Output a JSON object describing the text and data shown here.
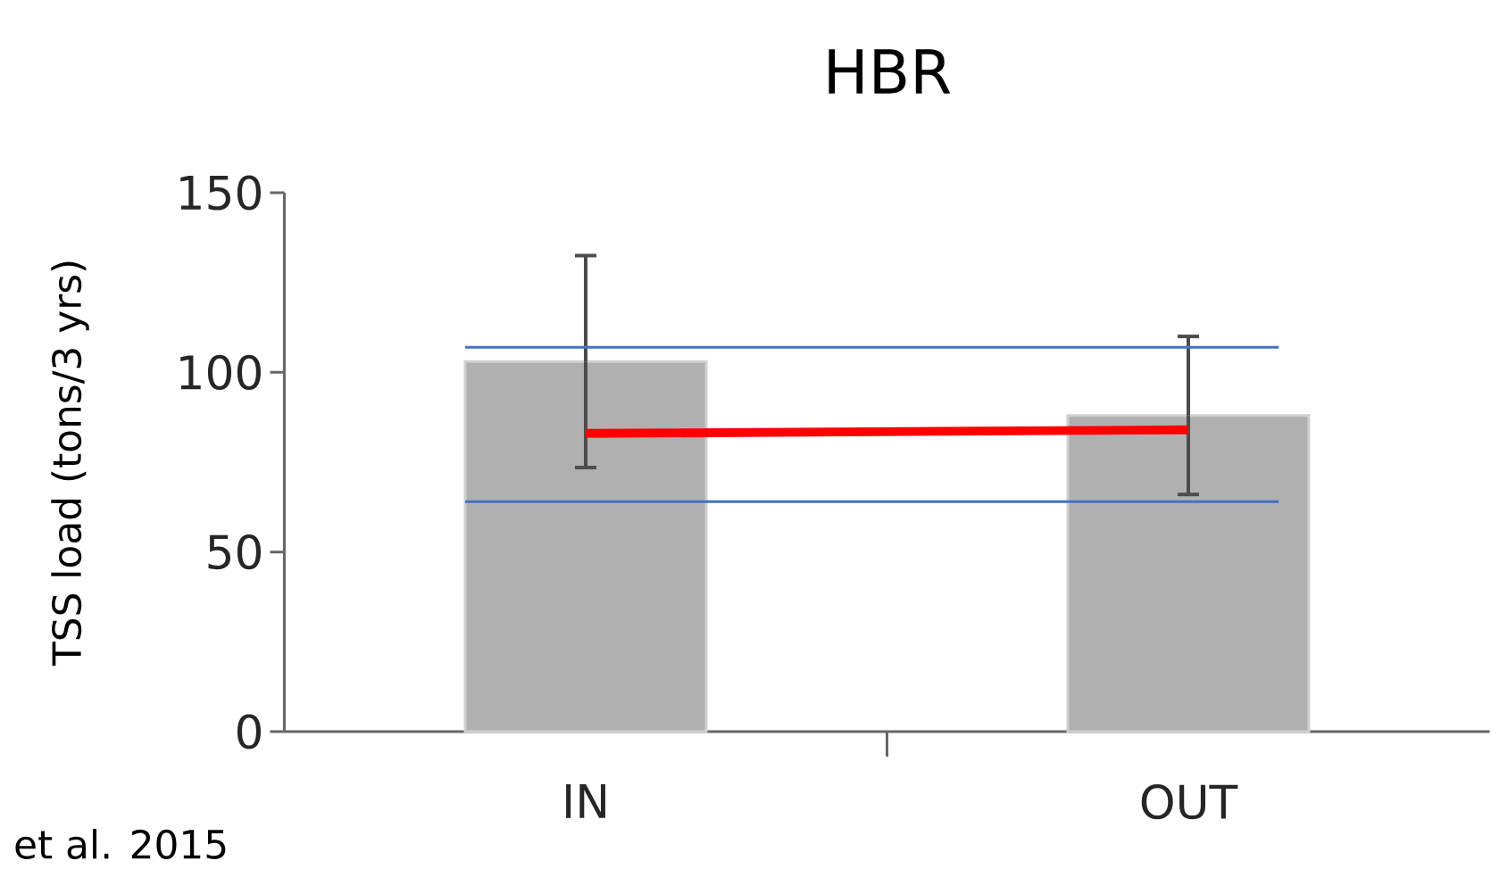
{
  "chart_data": {
    "type": "bar",
    "title": "HBR",
    "ylabel": "TSS load (tons/3 yrs)",
    "categories": [
      "IN",
      "OUT"
    ],
    "series": [
      {
        "color": "#b0b0b0",
        "values": [
          103,
          88
        ],
        "errors": [
          [
            73.5,
            132.5
          ],
          [
            66,
            110
          ]
        ]
      },
      {
        "type": "line",
        "color": "#ff0000",
        "values": [
          83,
          84
        ]
      }
    ],
    "ref_lines": [
      {
        "axis": "y",
        "value": 107,
        "color": "#4472c4"
      },
      {
        "axis": "y",
        "value": 64,
        "color": "#4472c4"
      }
    ],
    "ylim": [
      0,
      150
    ],
    "yticks": [
      0,
      50,
      100,
      150
    ],
    "grid": false,
    "annotations": [
      "et al. 2015"
    ]
  }
}
